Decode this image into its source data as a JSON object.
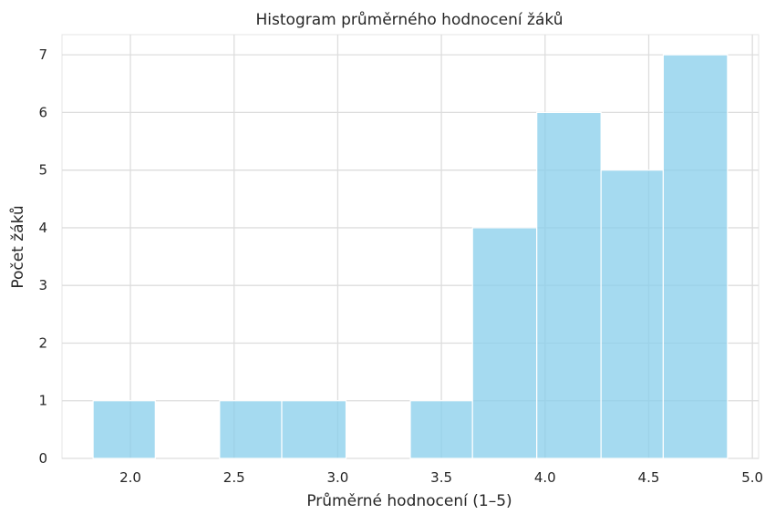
{
  "chart_data": {
    "type": "bar",
    "title": "Histogram průměrného hodnocení žáků",
    "xlabel": "Průměrné hodnocení (1–5)",
    "ylabel": "Počet žáků",
    "bins": [
      {
        "start": 1.82,
        "end": 2.12,
        "count": 1
      },
      {
        "start": 2.12,
        "end": 2.43,
        "count": 0
      },
      {
        "start": 2.43,
        "end": 2.73,
        "count": 1
      },
      {
        "start": 2.73,
        "end": 3.04,
        "count": 1
      },
      {
        "start": 3.04,
        "end": 3.35,
        "count": 0
      },
      {
        "start": 3.35,
        "end": 3.65,
        "count": 1
      },
      {
        "start": 3.65,
        "end": 3.96,
        "count": 4
      },
      {
        "start": 3.96,
        "end": 4.27,
        "count": 6
      },
      {
        "start": 4.27,
        "end": 4.57,
        "count": 5
      },
      {
        "start": 4.57,
        "end": 4.88,
        "count": 7
      }
    ],
    "xlim": [
      1.67,
      5.03
    ],
    "ylim": [
      0,
      7.35
    ],
    "xticks": [
      "2.0",
      "2.5",
      "3.0",
      "3.5",
      "4.0",
      "4.5",
      "5.0"
    ],
    "yticks": [
      "0",
      "1",
      "2",
      "3",
      "4",
      "5",
      "6",
      "7"
    ],
    "grid": true,
    "bar_color": "#87ceeb"
  }
}
